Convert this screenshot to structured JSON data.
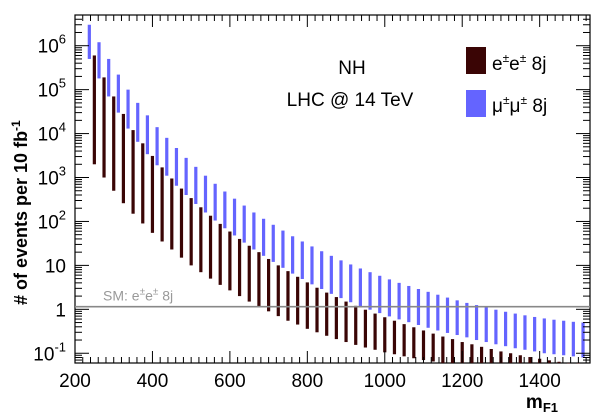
{
  "chart_data": {
    "type": "bar",
    "subtype": "range-bars",
    "xlabel": "m",
    "xlabel_sub": "F1",
    "ylabel": "# of events per 10 fb",
    "ylabel_sup": "-1",
    "xlim": [
      200,
      1530
    ],
    "ylim": [
      0.06,
      5000000
    ],
    "yscale": "log",
    "x_ticks": [
      200,
      400,
      600,
      800,
      1000,
      1200,
      1400
    ],
    "x_tick_labels": [
      "200",
      "400",
      "600",
      "800",
      "1000",
      "1200",
      "1400"
    ],
    "y_tick_labels": [
      {
        "value": 0.1,
        "base": "10",
        "exp": "-1"
      },
      {
        "value": 1,
        "base": "1",
        "exp": ""
      },
      {
        "value": 10,
        "base": "10",
        "exp": ""
      },
      {
        "value": 100,
        "base": "10",
        "exp": "2"
      },
      {
        "value": 1000,
        "base": "10",
        "exp": "3"
      },
      {
        "value": 10000,
        "base": "10",
        "exp": "4"
      },
      {
        "value": 100000,
        "base": "10",
        "exp": "5"
      },
      {
        "value": 1000000,
        "base": "10",
        "exp": "6"
      }
    ],
    "annotations": {
      "scenario": "NH",
      "collider": "LHC @ 14 TeV",
      "sm_label_prefix": "SM: e",
      "sm_label_sup": "±",
      "sm_label_mid": "e",
      "sm_label_sup2": "±",
      "sm_label_suffix": " 8j",
      "sm_value": 1.15
    },
    "legend_position": "top-right",
    "series": [
      {
        "name": "e±e± 8j",
        "legend": {
          "p1": "e",
          "s1": "±",
          "p2": "e",
          "s2": "±",
          "tail": " 8j"
        },
        "color": "#3a0505",
        "x": [
          250,
          275,
          300,
          325,
          350,
          375,
          400,
          425,
          450,
          475,
          500,
          525,
          550,
          575,
          600,
          625,
          650,
          675,
          700,
          725,
          750,
          775,
          800,
          825,
          850,
          875,
          900,
          925,
          950,
          975,
          1000,
          1025,
          1050,
          1075,
          1100,
          1125,
          1150,
          1175,
          1200,
          1225,
          1250,
          1275,
          1300,
          1325,
          1350,
          1375,
          1400,
          1425,
          1450,
          1475,
          1500
        ],
        "low": [
          2000,
          1000,
          500,
          260,
          150,
          90,
          55,
          35,
          23,
          15,
          10,
          7,
          5,
          3.6,
          2.7,
          2.0,
          1.5,
          1.15,
          0.9,
          0.7,
          0.55,
          0.45,
          0.36,
          0.3,
          0.25,
          0.21,
          0.18,
          0.155,
          0.135,
          0.12,
          0.105,
          0.095,
          0.085,
          0.077,
          0.07,
          0.065,
          0.06,
          0.06,
          0.06,
          0.06,
          0.06,
          0.06,
          0.06,
          0.06,
          0.06,
          0.06,
          0.06,
          0.06,
          0.06,
          0.06,
          0.06
        ],
        "high": [
          600000,
          190000,
          70000,
          28000,
          12000,
          6000,
          3100,
          1700,
          950,
          560,
          340,
          210,
          135,
          88,
          59,
          40,
          28,
          20,
          14,
          10,
          7.4,
          5.5,
          4.1,
          3.1,
          2.4,
          1.9,
          1.5,
          1.2,
          0.98,
          0.8,
          0.66,
          0.55,
          0.46,
          0.39,
          0.33,
          0.28,
          0.24,
          0.21,
          0.18,
          0.16,
          0.14,
          0.125,
          0.11,
          0.1,
          0.09,
          0.082,
          0.075,
          0.069,
          0.064,
          0.06,
          0.06
        ]
      },
      {
        "name": "μ±μ± 8j",
        "legend": {
          "p1": "μ",
          "s1": "±",
          "p2": "μ",
          "s2": "±",
          "tail": " 8j"
        },
        "color": "#6464ff",
        "x": [
          237,
          262,
          287,
          312,
          337,
          362,
          387,
          412,
          437,
          462,
          487,
          512,
          537,
          562,
          587,
          612,
          637,
          662,
          687,
          712,
          737,
          762,
          787,
          812,
          837,
          862,
          887,
          912,
          937,
          962,
          987,
          1012,
          1037,
          1062,
          1087,
          1112,
          1137,
          1162,
          1187,
          1212,
          1237,
          1262,
          1287,
          1312,
          1337,
          1362,
          1387,
          1412,
          1437,
          1462,
          1487,
          1512
        ],
        "low": [
          500000,
          180000,
          70000,
          30000,
          13000,
          6500,
          3400,
          1900,
          1100,
          650,
          400,
          250,
          160,
          105,
          70,
          48,
          33,
          23,
          16.5,
          12,
          8.8,
          6.5,
          4.9,
          3.7,
          2.9,
          2.25,
          1.8,
          1.45,
          1.18,
          0.98,
          0.82,
          0.69,
          0.59,
          0.51,
          0.44,
          0.38,
          0.33,
          0.29,
          0.26,
          0.23,
          0.2,
          0.18,
          0.16,
          0.145,
          0.13,
          0.12,
          0.11,
          0.1,
          0.095,
          0.09,
          0.085,
          0.08
        ],
        "high": [
          3000000,
          1200000,
          500000,
          220000,
          100000,
          50000,
          26000,
          14000,
          8000,
          4700,
          2800,
          1750,
          1100,
          720,
          480,
          330,
          230,
          160,
          115,
          84,
          62,
          46,
          35,
          27,
          21,
          16.5,
          13,
          10.5,
          8.5,
          7,
          5.8,
          4.8,
          4.0,
          3.4,
          2.9,
          2.5,
          2.15,
          1.85,
          1.6,
          1.4,
          1.25,
          1.1,
          0.98,
          0.88,
          0.8,
          0.73,
          0.67,
          0.62,
          0.58,
          0.55,
          0.52,
          0.5
        ]
      }
    ]
  }
}
